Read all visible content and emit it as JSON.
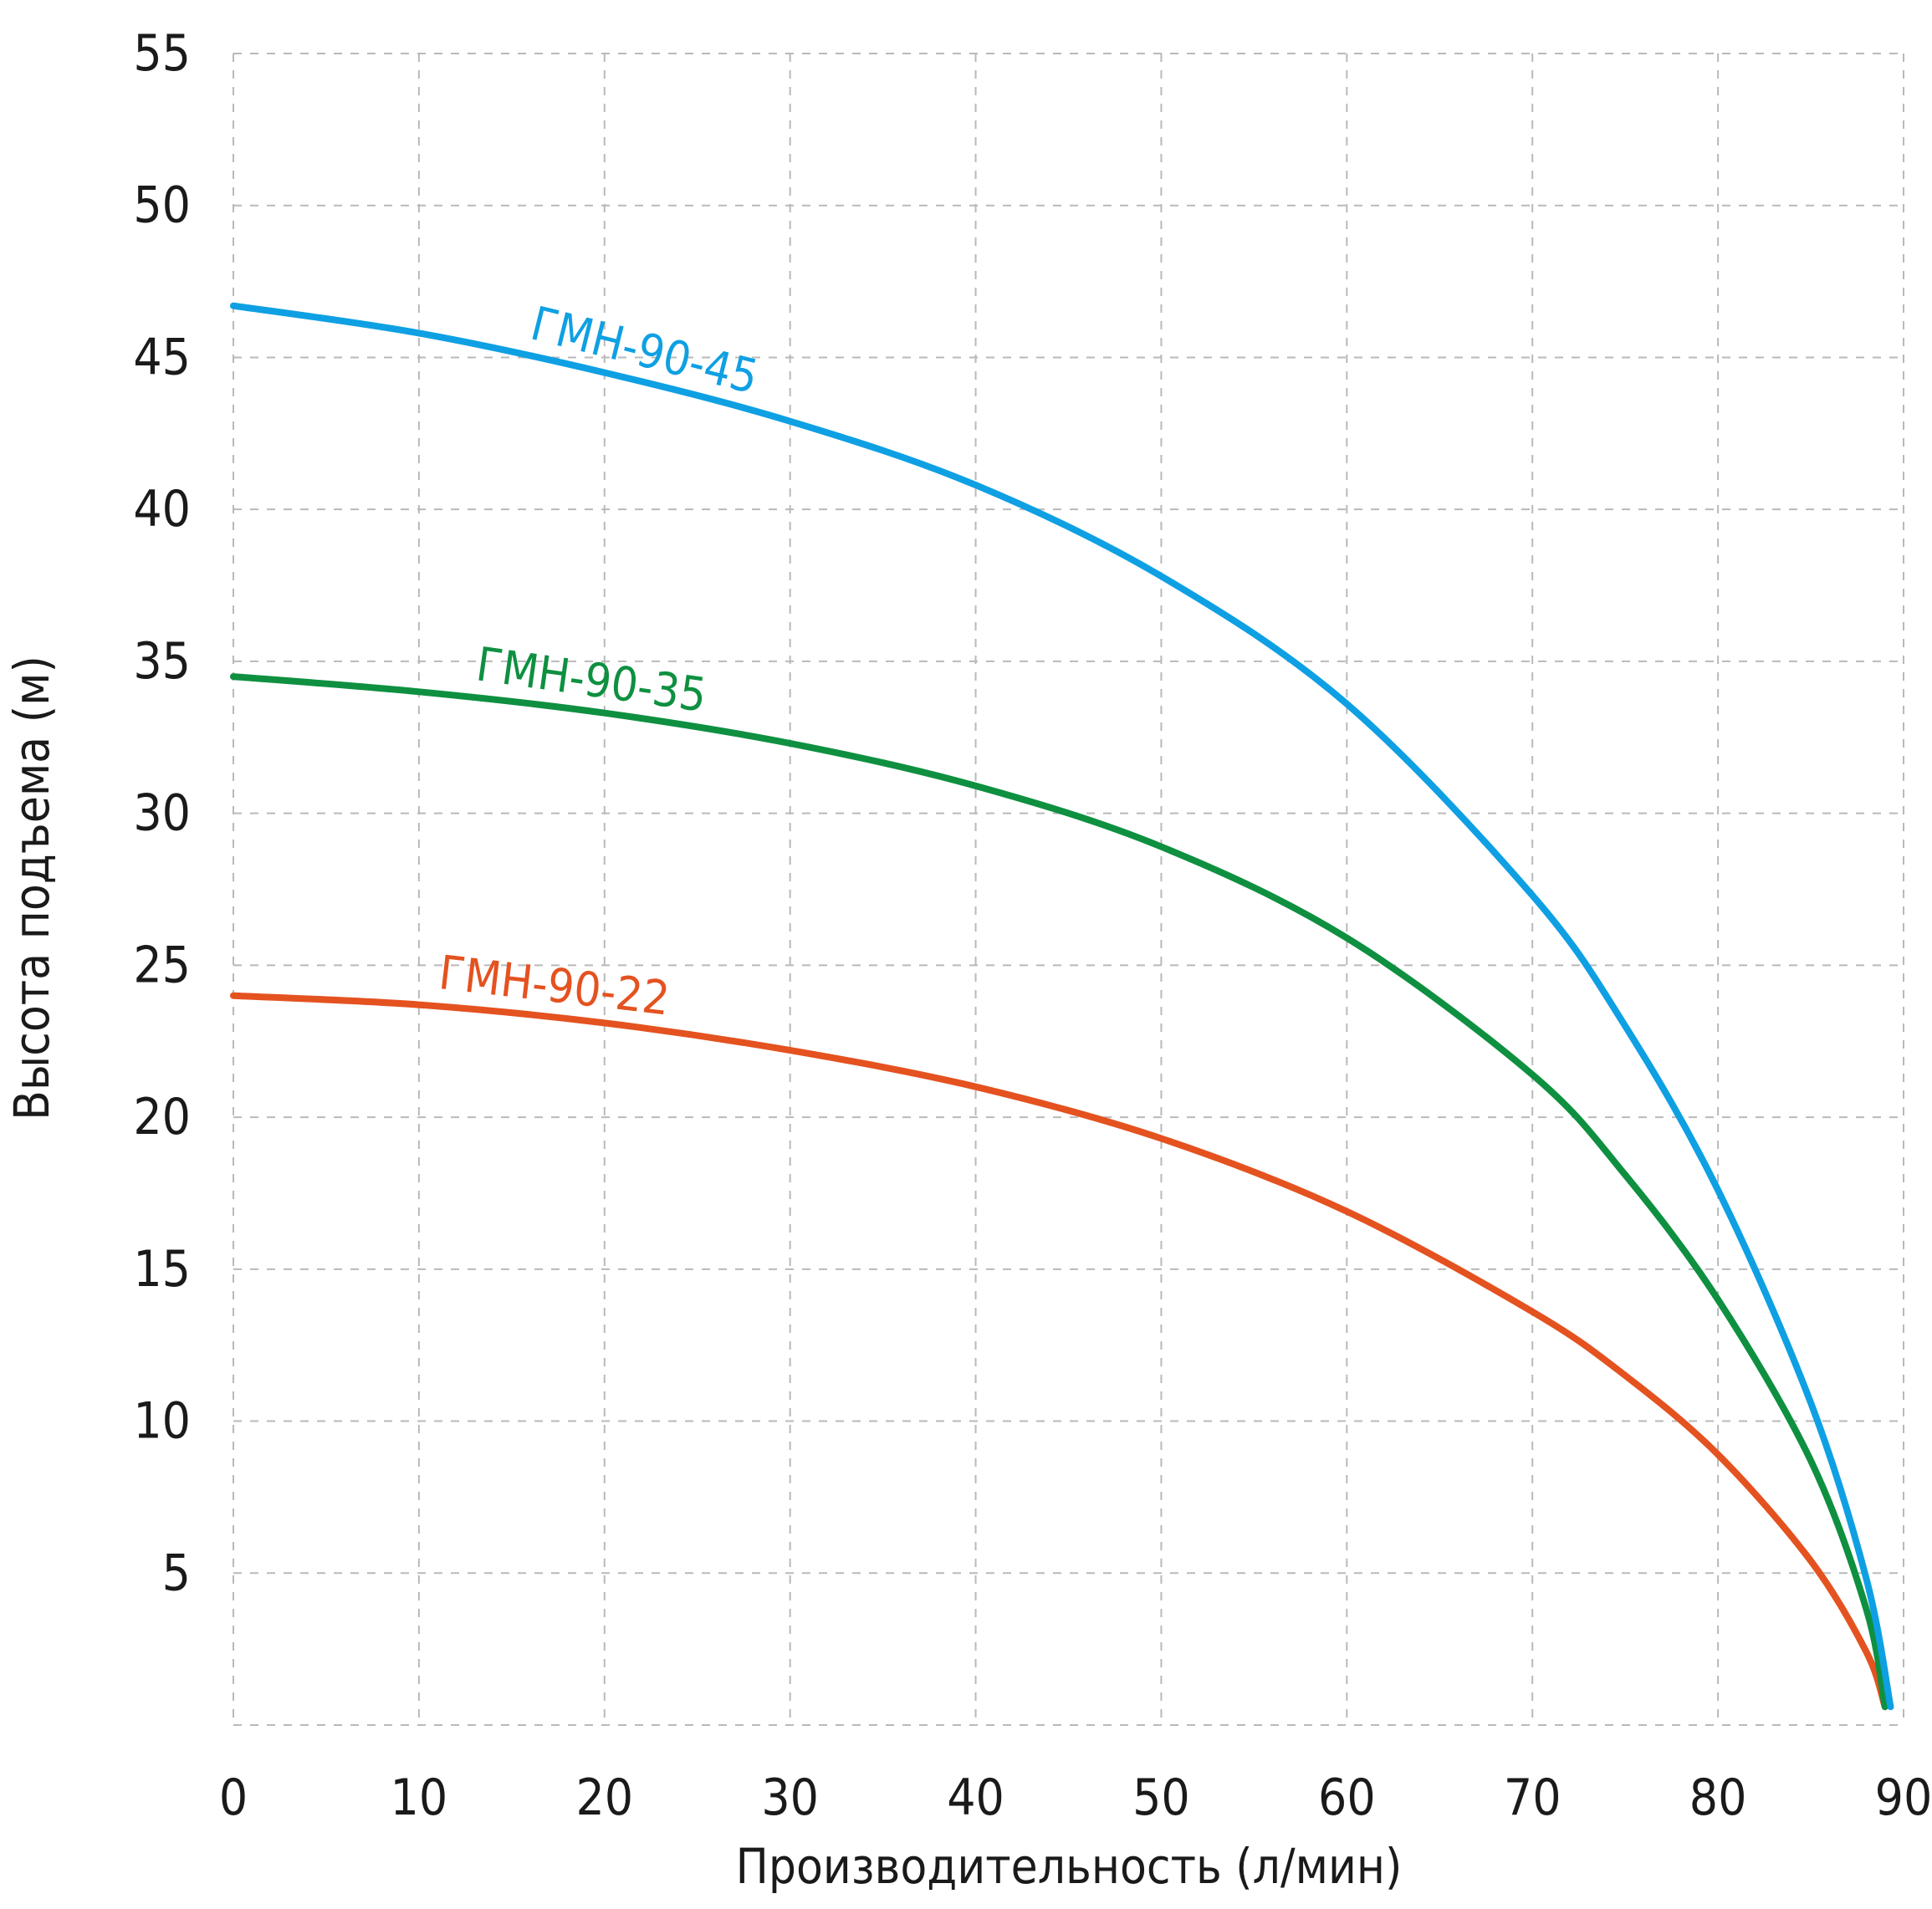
{
  "chart_data": {
    "type": "line",
    "title": "",
    "xlabel": "Производительность (л/мин)",
    "ylabel": "Высота подъема (м)",
    "xlim": [
      0,
      90
    ],
    "ylim": [
      0,
      55
    ],
    "x_ticks": [
      0,
      10,
      20,
      30,
      40,
      50,
      60,
      70,
      80,
      90
    ],
    "y_ticks": [
      5,
      10,
      15,
      20,
      25,
      30,
      35,
      40,
      45,
      50,
      55
    ],
    "grid": true,
    "grid_style": "dashed",
    "legend": "labels on curves",
    "series": [
      {
        "name": "ГМН-90-45",
        "color": "#0ea0e3",
        "x": [
          0,
          10,
          20,
          30,
          40,
          50,
          60,
          70,
          75,
          80,
          85,
          88,
          89.3
        ],
        "y": [
          46.7,
          45.8,
          44.5,
          42.9,
          40.8,
          37.8,
          33.6,
          27.3,
          23.0,
          17.6,
          10.6,
          4.8,
          0.6
        ]
      },
      {
        "name": "ГМН-90-35",
        "color": "#0e9040",
        "x": [
          0,
          10,
          20,
          30,
          40,
          50,
          60,
          70,
          75,
          80,
          85,
          88,
          89
        ],
        "y": [
          34.5,
          34.0,
          33.3,
          32.3,
          30.9,
          28.9,
          25.9,
          21.4,
          18.1,
          14.0,
          8.7,
          3.8,
          0.6
        ]
      },
      {
        "name": "ГМН-90-22",
        "color": "#e45220",
        "x": [
          0,
          10,
          20,
          30,
          40,
          50,
          60,
          70,
          75,
          80,
          85,
          88,
          89
        ],
        "y": [
          24.0,
          23.7,
          23.1,
          22.2,
          21.0,
          19.3,
          16.9,
          13.6,
          11.5,
          8.9,
          5.4,
          2.4,
          0.6
        ]
      }
    ]
  }
}
